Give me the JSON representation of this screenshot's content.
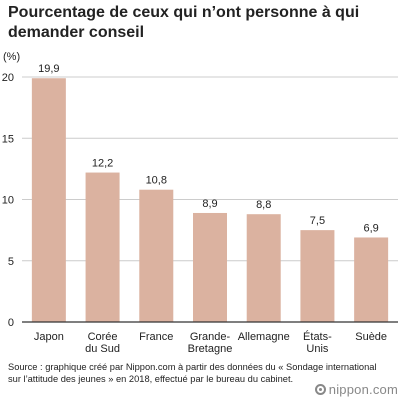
{
  "colors": {
    "bar": "#dbb2a0",
    "gridline": "#cccccc",
    "axis": "#333333",
    "text": "#222222",
    "brand": "#888888"
  },
  "chart_data": {
    "type": "bar",
    "title": "Pourcentage de ceux qui n’ont personne à qui demander conseil",
    "unit_label": "(%)",
    "categories": [
      [
        "Japon"
      ],
      [
        "Corée",
        "du Sud"
      ],
      [
        "France"
      ],
      [
        "Grande-",
        "Bretagne"
      ],
      [
        "Allemagne"
      ],
      [
        "États-",
        "Unis"
      ],
      [
        "Suède"
      ]
    ],
    "values": [
      19.9,
      12.2,
      10.8,
      8.9,
      8.8,
      7.5,
      6.9
    ],
    "value_labels": [
      "19,9",
      "12,2",
      "10,8",
      "8,9",
      "8,8",
      "7,5",
      "6,9"
    ],
    "yticks": [
      0,
      5,
      10,
      15,
      20
    ],
    "ylim": [
      0,
      20
    ],
    "grid": true
  },
  "source": "Source : graphique créé par Nippon.com à partir des données du « Sondage international sur l’attitude des jeunes » en 2018, effectué par le bureau du cabinet.",
  "brand": {
    "icon": "nippon-logo-icon",
    "text": "nippon.com"
  }
}
